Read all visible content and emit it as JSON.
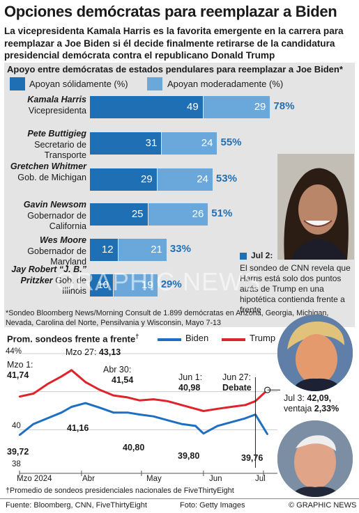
{
  "header": {
    "title": "Opciones demócratas para reemplazar a Biden",
    "subtitle": "La vicepresidenta Kamala Harris es la favorita emergente en la carrera para reemplazar a Joe Biden si él decide finalmente retirarse de la candidatura presidencial demócrata contra el republicano Donald Trump"
  },
  "colors": {
    "strong": "#1f6fb5",
    "moderate": "#6aa8dc",
    "biden": "#1e6fc4",
    "trump": "#e0222a",
    "panel": "#e4e4e4"
  },
  "bar_panel": {
    "title": "Apoyo entre demócratas de estados pendulares para reemplazar a Joe Biden*",
    "legend_strong": "Apoyan sólidamente (%)",
    "legend_moderate": "Apoyan moderadamente (%)",
    "footnote": "*Sondeo Bloomberg News/Morning Consult de 1.899 demócratas en Arizona, Georgia, Michigan, Nevada, Carolina del Norte, Pensilvania y Wisconsin, Mayo 7-13",
    "callout_date": "Jul 2:",
    "callout_text": "El sondeo de CNN revela que Harris está solo dos puntos atrás de Trump en una hipotética contienda frente a frente",
    "watermark": "GRAPHIC NEWS"
  },
  "rows": [
    {
      "name": "Kamala Harris",
      "role": "Vicepresidenta",
      "strong": "49",
      "moderate": "29",
      "total": "78%"
    },
    {
      "name": "Pete Buttigieg",
      "role": "Secretario de Transporte",
      "strong": "31",
      "moderate": "24",
      "total": "55%"
    },
    {
      "name": "Gretchen Whitmer",
      "role": "Gob. de Michigan",
      "strong": "29",
      "moderate": "24",
      "total": "53%"
    },
    {
      "name": "Gavin Newsom",
      "role": "Gobernador de California",
      "strong": "25",
      "moderate": "26",
      "total": "51%"
    },
    {
      "name": "Wes Moore",
      "role": "Gobernador de Maryland",
      "strong": "12",
      "moderate": "21",
      "total": "33%"
    },
    {
      "name": "Jay Robert “J. B.” Pritzker",
      "role": "Gob. de Illinois",
      "strong": "10",
      "moderate": "19",
      "total": "29%"
    }
  ],
  "poll_chart": {
    "title": "Prom. sondeos frente a frente",
    "title_mark": "†",
    "legend_biden": "Biden",
    "legend_trump": "Trump",
    "y_top": "44%",
    "y_mid": "40",
    "y_bottom": "38",
    "months": [
      "Mzo 2024",
      "Abr",
      "May",
      "Jun",
      "Jul"
    ],
    "footnote": "†Promedio de sondeos presidenciales nacionales de FiveThirtyEight",
    "annotations": {
      "mar1_label": "Mzo 1:",
      "mar1_trump": "41,74",
      "mar1_biden": "39,72",
      "mar27_label": "Mzo 27:",
      "mar27_value": "43,13",
      "apr_biden": "41,16",
      "apr30_label": "Abr 30:",
      "apr30_trump": "41,54",
      "apr30_biden": "40,80",
      "jun1_label": "Jun 1:",
      "jun1_trump": "40,98",
      "jun1_biden": "39,80",
      "jun27_label": "Jun 27:",
      "jun27_debate": "Debate",
      "jul_biden": "39,76",
      "jul3_label": "Jul 3:",
      "jul3_value": "42,09,",
      "jul3_lead_label": "ventaja",
      "jul3_lead": "2,33%"
    }
  },
  "chart_data": [
    {
      "type": "bar",
      "title": "Apoyo entre demócratas de estados pendulares para reemplazar a Joe Biden*",
      "categories": [
        "Kamala Harris",
        "Pete Buttigieg",
        "Gretchen Whitmer",
        "Gavin Newsom",
        "Wes Moore",
        "Jay Robert “J. B.” Pritzker"
      ],
      "series": [
        {
          "name": "Apoyan sólidamente (%)",
          "values": [
            49,
            31,
            29,
            25,
            12,
            10
          ]
        },
        {
          "name": "Apoyan moderadamente (%)",
          "values": [
            29,
            24,
            24,
            26,
            21,
            19
          ]
        }
      ],
      "totals": [
        78,
        55,
        53,
        51,
        33,
        29
      ],
      "stacked": true
    },
    {
      "type": "line",
      "title": "Prom. sondeos frente a frente†",
      "ylim": [
        38,
        44
      ],
      "x": [
        "2024-03-01",
        "2024-03-08",
        "2024-03-15",
        "2024-03-22",
        "2024-03-27",
        "2024-04-03",
        "2024-04-10",
        "2024-04-17",
        "2024-04-24",
        "2024-04-30",
        "2024-05-07",
        "2024-05-14",
        "2024-05-21",
        "2024-05-28",
        "2024-06-01",
        "2024-06-08",
        "2024-06-15",
        "2024-06-22",
        "2024-06-27",
        "2024-07-03"
      ],
      "series": [
        {
          "name": "Trump",
          "values": [
            41.74,
            41.9,
            42.4,
            42.8,
            43.13,
            42.5,
            42.1,
            41.8,
            41.7,
            41.54,
            41.6,
            41.5,
            41.3,
            41.1,
            40.98,
            41.1,
            41.2,
            41.3,
            41.5,
            42.09
          ]
        },
        {
          "name": "Biden",
          "values": [
            39.72,
            40.3,
            40.6,
            40.9,
            41.2,
            41.4,
            41.16,
            40.9,
            40.9,
            40.8,
            40.7,
            40.5,
            40.3,
            40.2,
            39.8,
            40.2,
            40.4,
            40.6,
            40.8,
            39.76
          ]
        }
      ]
    }
  ],
  "footer": {
    "source": "Fuente: Bloomberg, CNN, FiveThirtyEight",
    "photo": "Foto: Getty Images",
    "credit": "© GRAPHIC NEWS"
  }
}
